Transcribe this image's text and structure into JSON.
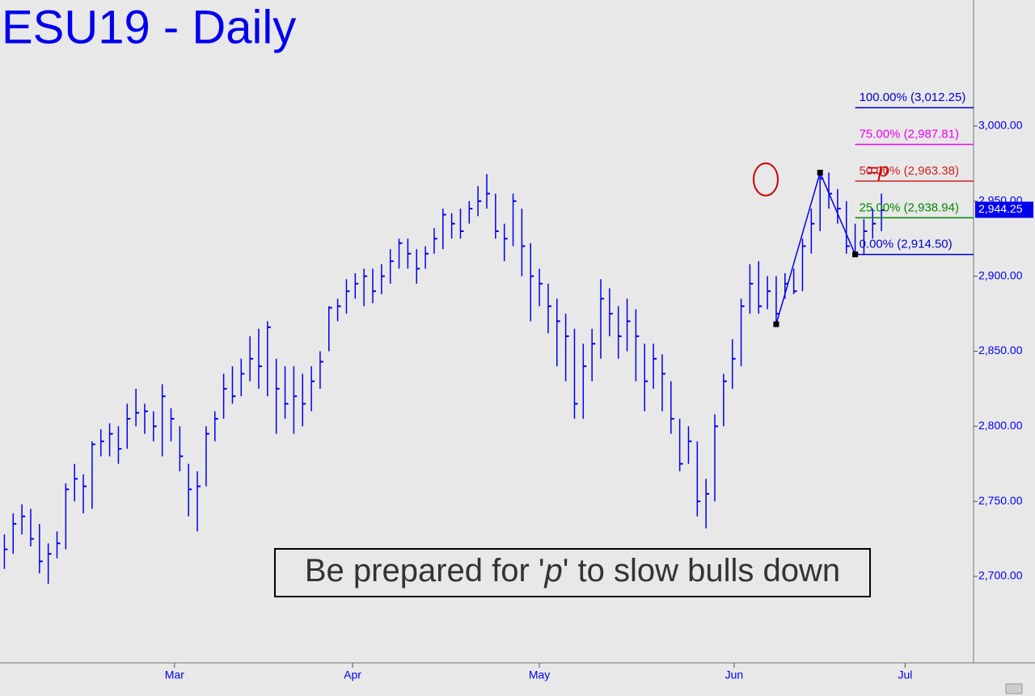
{
  "chart_data": {
    "type": "ohlc",
    "title": "ESU19 - Daily",
    "color": "#0000ee",
    "ylim": [
      2642.4,
      3084
    ],
    "yticks": [
      {
        "value": 2700,
        "label": "2,700.00"
      },
      {
        "value": 2750,
        "label": "2,750.00"
      },
      {
        "value": 2800,
        "label": "2,800.00"
      },
      {
        "value": 2850,
        "label": "2,850.00"
      },
      {
        "value": 2900,
        "label": "2,900.00"
      },
      {
        "value": 2950,
        "label": "2,950.00"
      },
      {
        "value": 3000,
        "label": "3,000.00"
      }
    ],
    "xlim": [
      -0.5,
      110.5
    ],
    "xticks": [
      {
        "value": 19.4,
        "label": "Mar"
      },
      {
        "value": 39.7,
        "label": "Apr"
      },
      {
        "value": 61,
        "label": "May"
      },
      {
        "value": 83.2,
        "label": "Jun"
      },
      {
        "value": 102.7,
        "label": "Jul"
      }
    ],
    "high": [
      2728,
      2742,
      2748,
      2745,
      2735,
      2722,
      2730,
      2762,
      2775,
      2768,
      2790,
      2798,
      2802,
      2800,
      2815,
      2825,
      2815,
      2810,
      2828,
      2812,
      2800,
      2775,
      2770,
      2800,
      2810,
      2835,
      2840,
      2845,
      2860,
      2865,
      2870,
      2845,
      2840,
      2840,
      2835,
      2840,
      2850,
      2880,
      2885,
      2898,
      2902,
      2905,
      2905,
      2908,
      2918,
      2925,
      2925,
      2918,
      2920,
      2932,
      2945,
      2942,
      2945,
      2950,
      2960,
      2968,
      2955,
      2935,
      2955,
      2945,
      2922,
      2905,
      2895,
      2885,
      2875,
      2865,
      2855,
      2865,
      2898,
      2892,
      2880,
      2885,
      2878,
      2855,
      2855,
      2848,
      2830,
      2805,
      2800,
      2790,
      2765,
      2808,
      2835,
      2858,
      2885,
      2908,
      2910,
      2900,
      2900,
      2902,
      2905,
      2925,
      2945,
      2968,
      2969,
      2958,
      2950,
      2935,
      2938,
      2945,
      2955
    ],
    "low": [
      2705,
      2715,
      2728,
      2720,
      2702,
      2695,
      2712,
      2718,
      2750,
      2742,
      2745,
      2780,
      2780,
      2775,
      2785,
      2800,
      2795,
      2790,
      2780,
      2790,
      2770,
      2740,
      2730,
      2760,
      2790,
      2805,
      2815,
      2820,
      2830,
      2825,
      2820,
      2795,
      2805,
      2795,
      2800,
      2810,
      2825,
      2850,
      2870,
      2875,
      2885,
      2880,
      2882,
      2888,
      2895,
      2905,
      2905,
      2895,
      2905,
      2915,
      2918,
      2925,
      2925,
      2935,
      2940,
      2945,
      2925,
      2910,
      2920,
      2900,
      2870,
      2880,
      2862,
      2840,
      2830,
      2805,
      2805,
      2830,
      2845,
      2860,
      2845,
      2850,
      2830,
      2810,
      2825,
      2810,
      2795,
      2770,
      2775,
      2740,
      2732,
      2750,
      2800,
      2825,
      2840,
      2875,
      2875,
      2878,
      2868,
      2885,
      2888,
      2890,
      2915,
      2930,
      2945,
      2935,
      2915,
      2914,
      2914,
      2925,
      2930
    ],
    "close": [
      2718,
      2735,
      2740,
      2725,
      2710,
      2715,
      2722,
      2758,
      2765,
      2760,
      2788,
      2790,
      2795,
      2785,
      2805,
      2809,
      2810,
      2800,
      2820,
      2805,
      2780,
      2758,
      2760,
      2795,
      2805,
      2825,
      2820,
      2835,
      2845,
      2840,
      2866,
      2825,
      2815,
      2820,
      2815,
      2830,
      2843,
      2879,
      2880,
      2890,
      2895,
      2900,
      2890,
      2900,
      2910,
      2922,
      2915,
      2905,
      2915,
      2925,
      2941,
      2935,
      2930,
      2945,
      2950,
      2955,
      2930,
      2925,
      2950,
      2920,
      2900,
      2895,
      2880,
      2870,
      2860,
      2815,
      2840,
      2855,
      2885,
      2875,
      2860,
      2870,
      2860,
      2830,
      2845,
      2835,
      2805,
      2775,
      2790,
      2750,
      2755,
      2800,
      2830,
      2845,
      2880,
      2895,
      2880,
      2890,
      2875,
      2895,
      2890,
      2920,
      2935,
      2965,
      2955,
      2945,
      2920,
      2915,
      2930,
      2935,
      2944
    ],
    "levels": [
      {
        "label": "100.00% (3,012.25)",
        "value": 3012.25,
        "color": "#0000cc"
      },
      {
        "label": "75.00% (2,987.81)",
        "value": 2987.81,
        "color": "#ee00ee"
      },
      {
        "label": "50.00% (2,963.38)",
        "value": 2963.38,
        "color": "#cc2222"
      },
      {
        "label": "25.00% (2,938.94)",
        "value": 2938.94,
        "color": "#008800"
      },
      {
        "label": "0.00% (2,914.50)",
        "value": 2914.5,
        "color": "#0000cc"
      }
    ],
    "pattern": {
      "x": [
        88,
        93,
        97
      ],
      "y": [
        2868,
        2969,
        2914.5
      ]
    },
    "marker_label": "=p",
    "last": {
      "value": 2944.25,
      "label": "2,944.25"
    },
    "annotation": [
      "Be prepared for '",
      "p",
      "' to slow bulls down"
    ]
  }
}
